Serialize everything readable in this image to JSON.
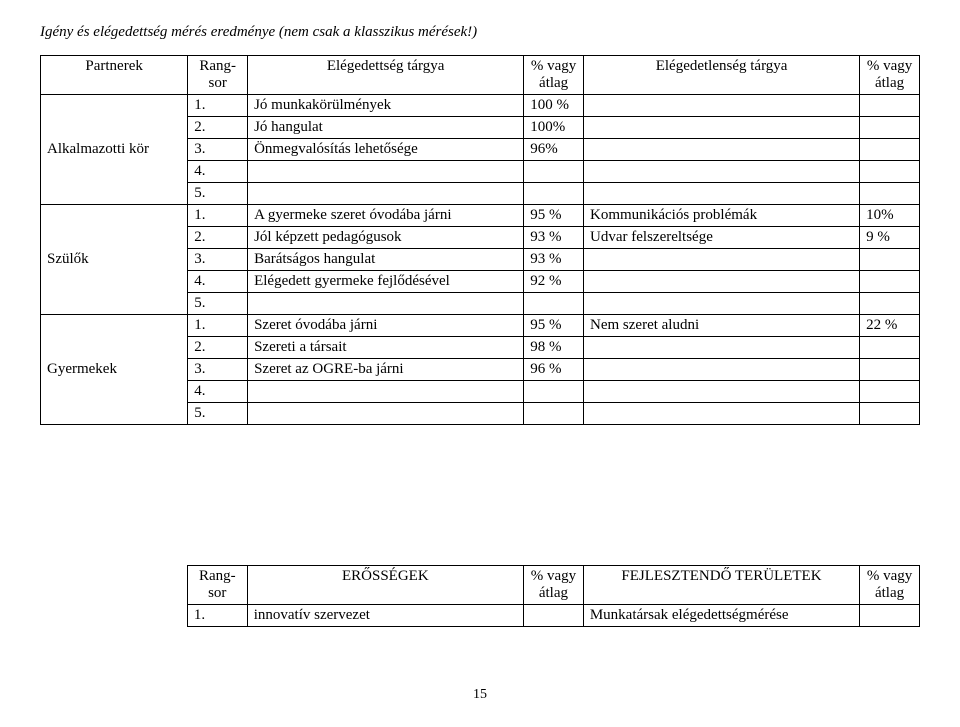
{
  "title": "Igény és elégedettség mérés eredménye (nem csak a klasszikus mérések!)",
  "table1": {
    "headers": {
      "partner": "Partnerek",
      "rank": "Rang-sor",
      "satisfaction": "Elégedettség tárgya",
      "satpct": "% vagy átlag",
      "dissatisfaction": "Elégedetlenség tárgya",
      "dispct": "% vagy átlag"
    },
    "groups": [
      {
        "partner": "Alkalmazotti kör",
        "rows": [
          {
            "rank": "1.",
            "sat": "Jó munkakörülmények",
            "satpct": "100 %",
            "dis": "",
            "dispct": ""
          },
          {
            "rank": "2.",
            "sat": "Jó hangulat",
            "satpct": "100%",
            "dis": "",
            "dispct": ""
          },
          {
            "rank": "3.",
            "sat": "Önmegvalósítás lehetősége",
            "satpct": "96%",
            "dis": "",
            "dispct": ""
          },
          {
            "rank": "4.",
            "sat": "",
            "satpct": "",
            "dis": "",
            "dispct": ""
          },
          {
            "rank": "5.",
            "sat": "",
            "satpct": "",
            "dis": "",
            "dispct": ""
          }
        ]
      },
      {
        "partner": "Szülők",
        "rows": [
          {
            "rank": "1.",
            "sat": "A gyermeke szeret óvodába járni",
            "satpct": "95 %",
            "dis": "Kommunikációs problémák",
            "dispct": "10%"
          },
          {
            "rank": "2.",
            "sat": "Jól képzett pedagógusok",
            "satpct": "93 %",
            "dis": "Udvar felszereltsége",
            "dispct": "9 %"
          },
          {
            "rank": "3.",
            "sat": "Barátságos hangulat",
            "satpct": "93 %",
            "dis": "",
            "dispct": ""
          },
          {
            "rank": "4.",
            "sat": "Elégedett gyermeke fejlődésével",
            "satpct": "92 %",
            "dis": "",
            "dispct": ""
          },
          {
            "rank": "5.",
            "sat": "",
            "satpct": "",
            "dis": "",
            "dispct": ""
          }
        ]
      },
      {
        "partner": "Gyermekek",
        "rows": [
          {
            "rank": "1.",
            "sat": "Szeret óvodába járni",
            "satpct": "95 %",
            "dis": "Nem szeret aludni",
            "dispct": "22 %"
          },
          {
            "rank": "2.",
            "sat": "Szereti a társait",
            "satpct": "98 %",
            "dis": "",
            "dispct": ""
          },
          {
            "rank": "3.",
            "sat": "Szeret az OGRE-ba járni",
            "satpct": "96 %",
            "dis": "",
            "dispct": ""
          },
          {
            "rank": "4.",
            "sat": "",
            "satpct": "",
            "dis": "",
            "dispct": ""
          },
          {
            "rank": "5.",
            "sat": "",
            "satpct": "",
            "dis": "",
            "dispct": ""
          }
        ]
      }
    ]
  },
  "table2": {
    "headers": {
      "rank": "Rang-sor",
      "strengths": "ERŐSSÉGEK",
      "strpct": "% vagy átlag",
      "develop": "FEJLESZTENDŐ TERÜLETEK",
      "devpct": "% vagy átlag"
    },
    "rows": [
      {
        "rank": "1.",
        "str": "innovatív szervezet",
        "strpct": "",
        "dev": "Munkatársak elégedettségmérése",
        "devpct": ""
      }
    ]
  },
  "pagenum": "15"
}
